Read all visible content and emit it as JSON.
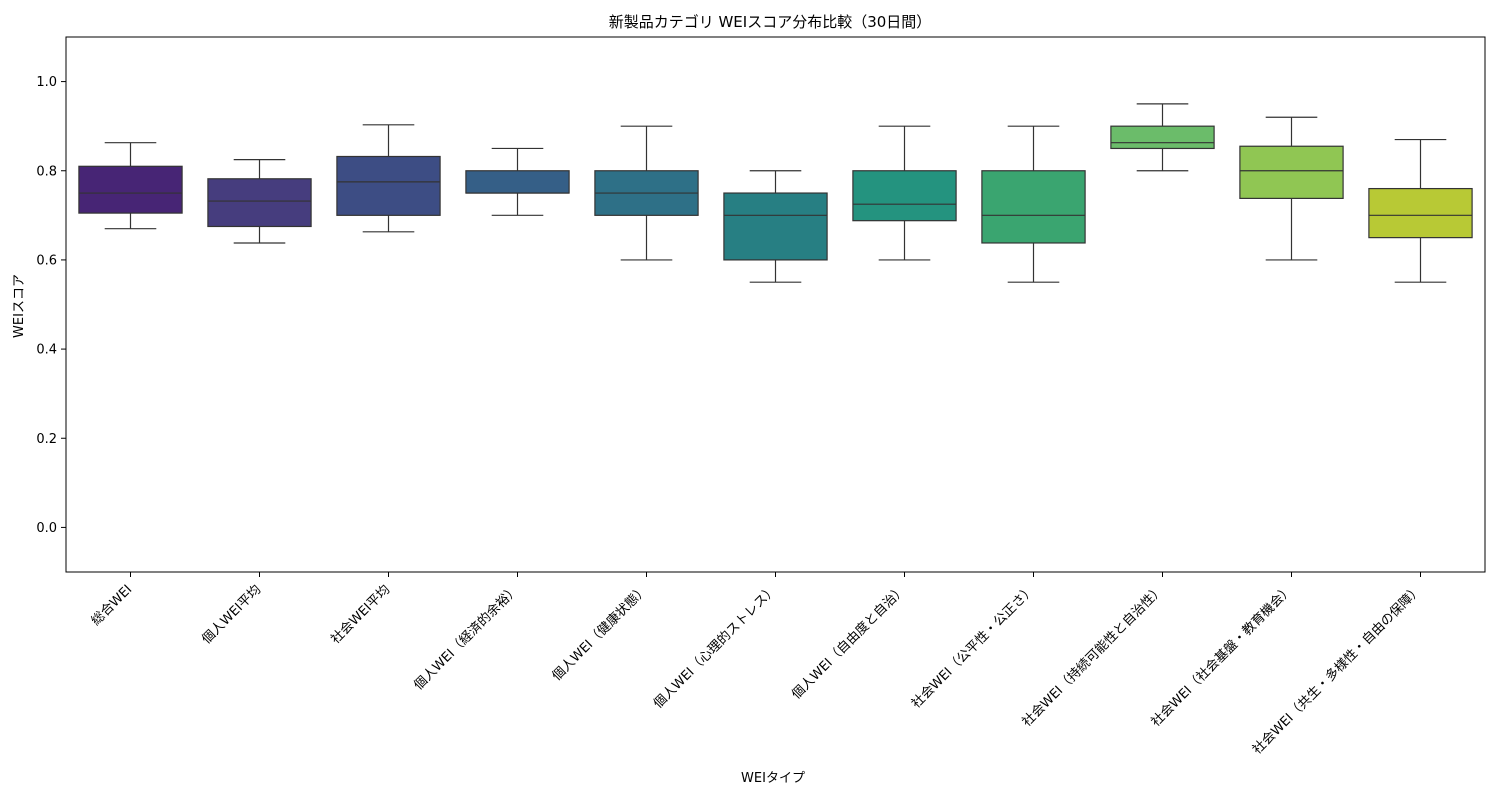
{
  "chart_data": {
    "type": "box",
    "title": "新製品カテゴリ WEIスコア分布比較（30日間）",
    "xlabel": "WEIタイプ",
    "ylabel": "WEIスコア",
    "ylim": [
      -0.1,
      1.1
    ],
    "yticks": [
      0.0,
      0.2,
      0.4,
      0.6,
      0.8,
      1.0
    ],
    "ytick_labels": [
      "0.0",
      "0.2",
      "0.4",
      "0.6",
      "0.8",
      "1.0"
    ],
    "grid": false,
    "categories": [
      "総合WEI",
      "個人WEI平均",
      "社会WEI平均",
      "個人WEI（経済的余裕）",
      "個人WEI（健康状態）",
      "個人WEI（心理的ストレス）",
      "個人WEI（自由度と自治）",
      "社会WEI（公平性・公正さ）",
      "社会WEI（持続可能性と自治性）",
      "社会WEI（社会基盤・教育機会）",
      "社会WEI（共生・多様性・自由の保障）"
    ],
    "boxes": [
      {
        "whisker_low": 0.67,
        "q1": 0.705,
        "median": 0.75,
        "q3": 0.81,
        "whisker_high": 0.863,
        "color": "#472575"
      },
      {
        "whisker_low": 0.638,
        "q1": 0.675,
        "median": 0.732,
        "q3": 0.782,
        "whisker_high": 0.825,
        "color": "#463d7e"
      },
      {
        "whisker_low": 0.663,
        "q1": 0.7,
        "median": 0.775,
        "q3": 0.832,
        "whisker_high": 0.903,
        "color": "#3d4d84"
      },
      {
        "whisker_low": 0.7,
        "q1": 0.75,
        "median": 0.75,
        "q3": 0.8,
        "whisker_high": 0.85,
        "color": "#355f87"
      },
      {
        "whisker_low": 0.6,
        "q1": 0.7,
        "median": 0.75,
        "q3": 0.8,
        "whisker_high": 0.9,
        "color": "#2e7087"
      },
      {
        "whisker_low": 0.55,
        "q1": 0.6,
        "median": 0.7,
        "q3": 0.75,
        "whisker_high": 0.8,
        "color": "#277f83"
      },
      {
        "whisker_low": 0.6,
        "q1": 0.688,
        "median": 0.725,
        "q3": 0.8,
        "whisker_high": 0.9,
        "color": "#24937f"
      },
      {
        "whisker_low": 0.55,
        "q1": 0.638,
        "median": 0.7,
        "q3": 0.8,
        "whisker_high": 0.9,
        "color": "#3aa570"
      },
      {
        "whisker_low": 0.8,
        "q1": 0.85,
        "median": 0.863,
        "q3": 0.9,
        "whisker_high": 0.95,
        "color": "#6bbc6a"
      },
      {
        "whisker_low": 0.6,
        "q1": 0.738,
        "median": 0.8,
        "q3": 0.855,
        "whisker_high": 0.92,
        "color": "#90c653"
      },
      {
        "whisker_low": 0.55,
        "q1": 0.65,
        "median": 0.7,
        "q3": 0.76,
        "whisker_high": 0.87,
        "color": "#b8c935"
      }
    ]
  }
}
